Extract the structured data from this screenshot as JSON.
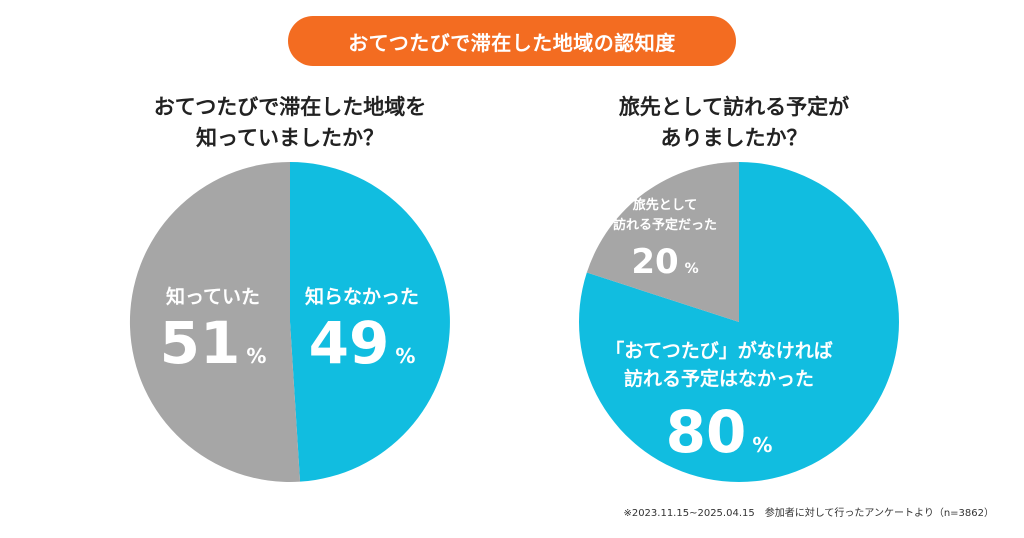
{
  "banner": "おてつたびで滞在した地域の認知度",
  "footnote": "※2023.11.15~2025.04.15　参加者に対して行ったアンケートより（n=3862）",
  "colors": {
    "accent": "#f36c21",
    "blue": "#11bde0",
    "gray": "#a6a6a6"
  },
  "chart_data": [
    {
      "type": "pie",
      "title_lines": [
        "おてつたびで滞在した地域を",
        "知っていましたか？"
      ],
      "slices": [
        {
          "label_lines": [
            "知らなかった"
          ],
          "value": 49,
          "pct_text": "49",
          "unit": "%",
          "color": "#11bde0"
        },
        {
          "label_lines": [
            "知っていた"
          ],
          "value": 51,
          "pct_text": "51",
          "unit": "%",
          "color": "#a6a6a6"
        }
      ]
    },
    {
      "type": "pie",
      "title_lines": [
        "旅先として訪れる予定が",
        "ありましたか？"
      ],
      "slices": [
        {
          "label_lines": [
            "「おてつたび」がなければ",
            "訪れる予定はなかった"
          ],
          "value": 80,
          "pct_text": "80",
          "unit": "%",
          "color": "#11bde0"
        },
        {
          "label_lines": [
            "旅先として",
            "訪れる予定だった"
          ],
          "value": 20,
          "pct_text": "20",
          "unit": "%",
          "color": "#a6a6a6"
        }
      ]
    }
  ]
}
